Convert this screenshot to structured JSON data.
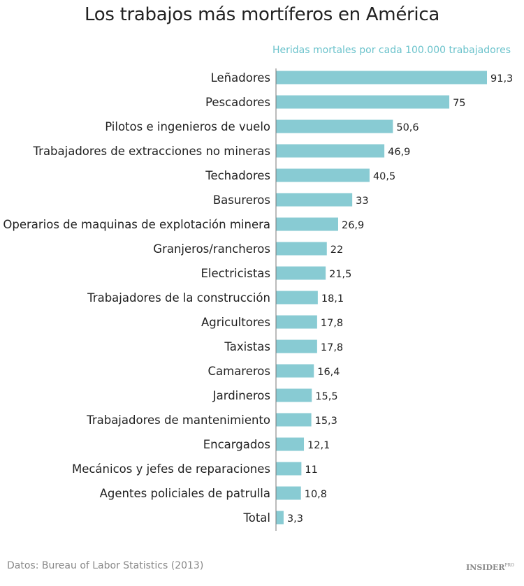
{
  "chart_data": {
    "type": "bar",
    "orientation": "horizontal",
    "title": "Los trabajos más mortíferos en América",
    "subtitle": "Heridas mortales por cada 100.000 trabajadores",
    "categories": [
      "Leñadores",
      "Pescadores",
      "Pilotos e ingenieros de vuelo",
      "Trabajadores de extracciones no mineras",
      "Techadores",
      "Basureros",
      "Operarios de maquinas de explotación minera",
      "Granjeros/rancheros",
      "Electricistas",
      "Trabajadores de la construcción",
      "Agricultores",
      "Taxistas",
      "Camareros",
      "Jardineros",
      "Trabajadores de mantenimiento",
      "Encargados",
      "Mecánicos y jefes de reparaciones",
      "Agentes policiales de patrulla",
      "Total"
    ],
    "values": [
      91.3,
      75,
      50.6,
      46.9,
      40.5,
      33,
      26.9,
      22,
      21.5,
      18.1,
      17.8,
      17.8,
      16.4,
      15.5,
      15.3,
      12.1,
      11,
      10.8,
      3.3
    ],
    "data_labels": [
      "91,3",
      "75",
      "50,6",
      "46,9",
      "40,5",
      "33",
      "26,9",
      "22",
      "21,5",
      "18,1",
      "17,8",
      "17,8",
      "16,4",
      "15,5",
      "15,3",
      "12,1",
      "11",
      "10,8",
      "3,3"
    ],
    "xlim": [
      0,
      100
    ],
    "grid": false,
    "bar_color": "#88cbd3",
    "subtitle_color": "#6cc3cc"
  },
  "footer": {
    "source": "Datos: Bureau of Labor Statistics (2013)",
    "logo": "INSIDER",
    "logo_suffix": "PRO"
  }
}
